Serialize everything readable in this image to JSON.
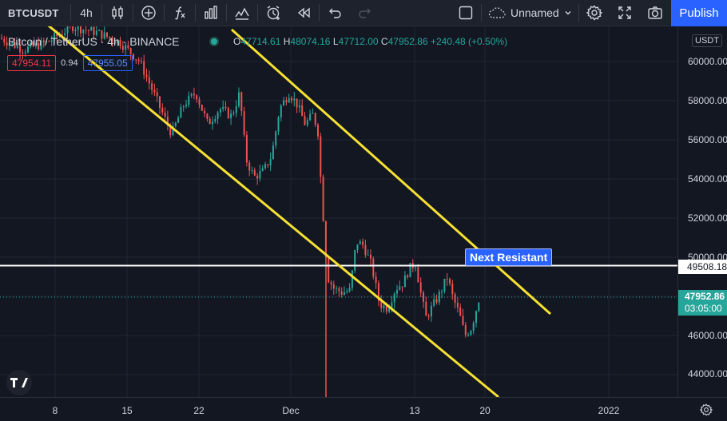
{
  "toolbar": {
    "symbol": "BTCUSDT",
    "interval": "4h",
    "layout_name": "Unnamed",
    "publish_label": "Publish"
  },
  "legend": {
    "pair": "Bitcoin / TetherUS",
    "interval": "4h",
    "exchange": "BINANCE",
    "open_key": "O",
    "open": "47714.61",
    "high_key": "H",
    "high": "48074.16",
    "low_key": "L",
    "low": "47712.00",
    "close_key": "C",
    "close": "47952.86",
    "change": "+240.48 (+0.50%)"
  },
  "quote": {
    "bid": "47954.11",
    "spread": "0.94",
    "ask": "47955.05"
  },
  "annotation": {
    "label": "Next Resistant"
  },
  "price_axis": {
    "currency": "USDT",
    "ticks": [
      "60000.00",
      "58000.00",
      "56000.00",
      "54000.00",
      "52000.00",
      "50000.00",
      "48000.00",
      "46000.00",
      "44000.00"
    ],
    "horizontal_line_price": "49508.18",
    "last_price": "47952.86",
    "countdown": "03:05:00"
  },
  "time_axis": {
    "ticks": [
      "8",
      "15",
      "22",
      "Dec",
      "13",
      "20",
      "2022"
    ]
  },
  "colors": {
    "up": "#26a69a",
    "down": "#ef5350",
    "channel": "#f5e033",
    "accent": "#2962ff",
    "background": "#131722"
  }
}
